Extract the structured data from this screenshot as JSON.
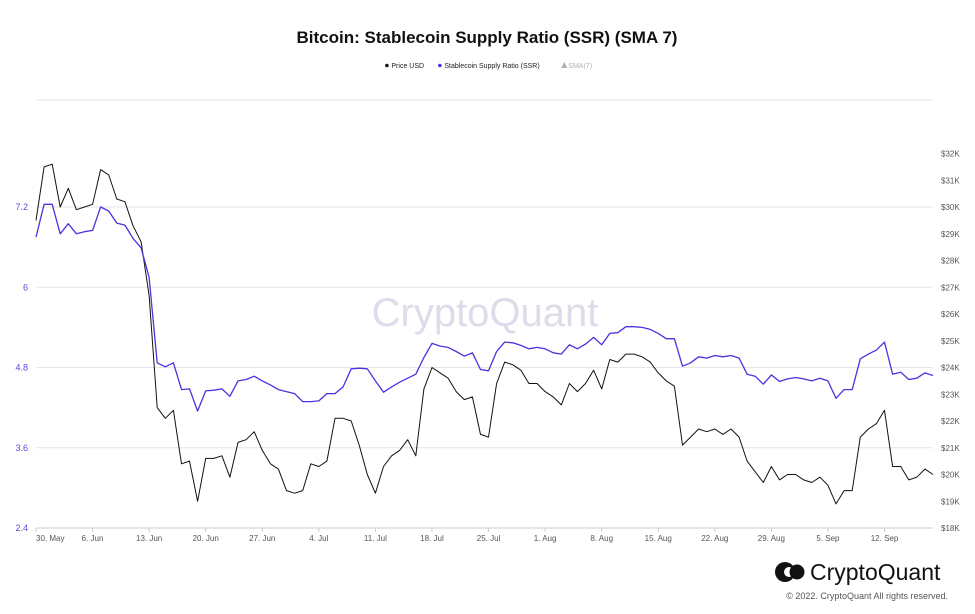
{
  "chart_data": {
    "type": "line",
    "title": "Bitcoin: Stablecoin Supply Ratio (SSR) (SMA 7)",
    "legend": {
      "placement": "top-center",
      "entries": [
        {
          "label": "Price USD",
          "color": "#111111",
          "muted": false
        },
        {
          "label": "Stablecoin Supply Ratio (SSR)",
          "color": "#4b32e0",
          "muted": false
        },
        {
          "label": "SMA(7)",
          "color": "#b0b0b0",
          "muted": true
        }
      ]
    },
    "x_ticks": [
      {
        "day": 0,
        "label": "30. May"
      },
      {
        "day": 7,
        "label": "6. Jun"
      },
      {
        "day": 14,
        "label": "13. Jun"
      },
      {
        "day": 21,
        "label": "20. Jun"
      },
      {
        "day": 28,
        "label": "27. Jun"
      },
      {
        "day": 35,
        "label": "4. Jul"
      },
      {
        "day": 42,
        "label": "11. Jul"
      },
      {
        "day": 49,
        "label": "18. Jul"
      },
      {
        "day": 56,
        "label": "25. Jul"
      },
      {
        "day": 63,
        "label": "1. Aug"
      },
      {
        "day": 70,
        "label": "8. Aug"
      },
      {
        "day": 77,
        "label": "15. Aug"
      },
      {
        "day": 84,
        "label": "22. Aug"
      },
      {
        "day": 91,
        "label": "29. Aug"
      },
      {
        "day": 98,
        "label": "5. Sep"
      },
      {
        "day": 105,
        "label": "12. Sep"
      }
    ],
    "x_range": [
      0,
      111
    ],
    "y_left": {
      "range": [
        2.4,
        8.8
      ],
      "ticks": [
        2.4,
        3.6,
        4.8,
        6,
        7.2
      ],
      "labels": [
        "2.4",
        "3.6",
        "4.8",
        "6",
        "7.2"
      ]
    },
    "y_right": {
      "range": [
        18000,
        34000
      ],
      "ticks": [
        18000,
        19000,
        20000,
        21000,
        22000,
        23000,
        24000,
        25000,
        26000,
        27000,
        28000,
        29000,
        30000,
        31000,
        32000
      ],
      "labels": [
        "$18K",
        "$19K",
        "$20K",
        "$21K",
        "$22K",
        "$23K",
        "$24K",
        "$25K",
        "$26K",
        "$27K",
        "$28K",
        "$29K",
        "$30K",
        "$31K",
        "$32K"
      ]
    },
    "grid": "horizontal",
    "series": [
      {
        "name": "Price USD",
        "axis": "right",
        "color": "#111111",
        "values": [
          29500,
          31500,
          31600,
          30000,
          30700,
          29900,
          30000,
          30100,
          31400,
          31200,
          30300,
          30200,
          29300,
          28700,
          26700,
          22500,
          22100,
          22400,
          20400,
          20500,
          19000,
          20600,
          20600,
          20700,
          19900,
          21200,
          21300,
          21600,
          20900,
          20400,
          20200,
          19400,
          19300,
          19400,
          20400,
          20300,
          20500,
          22100,
          22100,
          22000,
          21100,
          20000,
          19300,
          20300,
          20700,
          20900,
          21300,
          20700,
          23200,
          24000,
          23800,
          23600,
          23100,
          22800,
          22900,
          21500,
          21400,
          23400,
          24200,
          24100,
          23900,
          23400,
          23400,
          23100,
          22900,
          22600,
          23400,
          23100,
          23400,
          23900,
          23200,
          24300,
          24200,
          24500,
          24500,
          24400,
          24200,
          23800,
          23500,
          23300,
          21100,
          21400,
          21700,
          21600,
          21700,
          21500,
          21700,
          21400,
          20500,
          20100,
          19700,
          20300,
          19800,
          20000,
          20000,
          19800,
          19700,
          19900,
          19600,
          18900,
          19400,
          19400,
          21400,
          21700,
          21900,
          22400,
          20300,
          20300,
          19800,
          19900,
          20200,
          20000
        ],
        "series_index": 0
      },
      {
        "name": "Stablecoin Supply Ratio (SSR)",
        "axis": "left",
        "color": "#4b32e0",
        "values": [
          6.75,
          7.24,
          7.24,
          6.8,
          6.95,
          6.8,
          6.83,
          6.85,
          7.2,
          7.14,
          6.96,
          6.93,
          6.73,
          6.59,
          6.15,
          4.87,
          4.81,
          4.87,
          4.47,
          4.48,
          4.15,
          4.45,
          4.46,
          4.48,
          4.37,
          4.6,
          4.62,
          4.67,
          4.6,
          4.54,
          4.47,
          4.44,
          4.41,
          4.29,
          4.29,
          4.3,
          4.41,
          4.41,
          4.51,
          4.78,
          4.79,
          4.78,
          4.6,
          4.43,
          4.51,
          4.58,
          4.64,
          4.7,
          4.95,
          5.16,
          5.12,
          5.1,
          5.04,
          4.97,
          5.02,
          4.77,
          4.75,
          5.04,
          5.18,
          5.17,
          5.13,
          5.08,
          5.1,
          5.08,
          5.02,
          5.0,
          5.14,
          5.08,
          5.15,
          5.25,
          5.14,
          5.31,
          5.32,
          5.41,
          5.41,
          5.4,
          5.37,
          5.31,
          5.23,
          5.23,
          4.82,
          4.87,
          4.96,
          4.94,
          4.98,
          4.96,
          4.98,
          4.94,
          4.7,
          4.67,
          4.55,
          4.69,
          4.59,
          4.63,
          4.65,
          4.63,
          4.6,
          4.64,
          4.6,
          4.34,
          4.47,
          4.47,
          4.93,
          5.0,
          5.06,
          5.18,
          4.7,
          4.73,
          4.62,
          4.64,
          4.72,
          4.68
        ],
        "series_index": 1
      }
    ]
  },
  "watermark": "CryptoQuant",
  "brand": {
    "name": "CryptoQuant",
    "copyright": "© 2022. CryptoQuant All rights reserved."
  }
}
